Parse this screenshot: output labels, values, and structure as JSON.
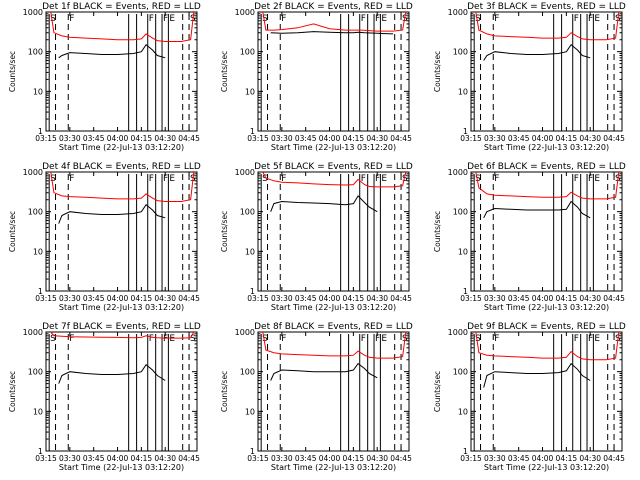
{
  "xticks": [
    "03:15",
    "03:30",
    "03:45",
    "04:00",
    "04:15",
    "04:30",
    "04:45"
  ],
  "yticks": [
    "1",
    "10",
    "100",
    "1000"
  ],
  "ylabel": "Counts/sec",
  "xlabel": "Start Time (22-Jul-13 03:12:20)",
  "colors": {
    "black": "#000000",
    "red": "#ff0000"
  },
  "chart_data": [
    {
      "type": "line",
      "title": "Det 1f BLACK = Events, RED = LLD",
      "ylim": [
        1,
        1000
      ],
      "yscale": "log",
      "xlim": [
        "03:15",
        "04:50"
      ],
      "series": [
        {
          "color": "black",
          "x": [
            "03:23",
            "03:25",
            "03:30",
            "03:40",
            "03:50",
            "04:00",
            "04:10",
            "04:15",
            "04:18",
            "04:22",
            "04:25",
            "04:30"
          ],
          "values": [
            70,
            80,
            95,
            90,
            85,
            85,
            90,
            100,
            150,
            110,
            80,
            70
          ]
        },
        {
          "color": "red",
          "x": [
            "03:18",
            "03:20",
            "03:25",
            "03:30",
            "03:40",
            "03:50",
            "04:00",
            "04:10",
            "04:15",
            "04:18",
            "04:22",
            "04:25",
            "04:30",
            "04:40",
            "04:46",
            "04:48"
          ],
          "values": [
            1000,
            300,
            250,
            230,
            220,
            210,
            200,
            200,
            210,
            280,
            220,
            190,
            180,
            180,
            200,
            1000
          ]
        }
      ]
    },
    {
      "type": "line",
      "title": "Det 2f BLACK = Events, RED = LLD",
      "ylim": [
        1,
        1000
      ],
      "yscale": "log",
      "xlim": [
        "03:15",
        "04:50"
      ],
      "series": [
        {
          "color": "black",
          "x": [
            "03:23",
            "03:30",
            "03:40",
            "03:50",
            "04:00",
            "04:10",
            "04:15",
            "04:18",
            "04:22",
            "04:30",
            "04:40"
          ],
          "values": [
            300,
            290,
            300,
            320,
            310,
            300,
            300,
            310,
            300,
            290,
            280
          ]
        },
        {
          "color": "red",
          "x": [
            "03:18",
            "03:20",
            "03:25",
            "03:30",
            "03:40",
            "03:50",
            "04:00",
            "04:10",
            "04:15",
            "04:20",
            "04:30",
            "04:40",
            "04:46",
            "04:48"
          ],
          "values": [
            1000,
            350,
            350,
            360,
            400,
            500,
            380,
            350,
            350,
            350,
            330,
            330,
            350,
            1000
          ]
        }
      ]
    },
    {
      "type": "line",
      "title": "Det 3f BLACK = Events, RED = LLD",
      "ylim": [
        1,
        1000
      ],
      "yscale": "log",
      "xlim": [
        "03:15",
        "04:50"
      ],
      "series": [
        {
          "color": "black",
          "x": [
            "03:23",
            "03:25",
            "03:30",
            "03:40",
            "03:50",
            "04:00",
            "04:10",
            "04:15",
            "04:18",
            "04:22",
            "04:25",
            "04:30"
          ],
          "values": [
            60,
            80,
            100,
            90,
            85,
            85,
            90,
            100,
            150,
            110,
            80,
            70
          ]
        },
        {
          "color": "red",
          "x": [
            "03:18",
            "03:20",
            "03:25",
            "03:30",
            "03:40",
            "03:50",
            "04:00",
            "04:10",
            "04:15",
            "04:18",
            "04:22",
            "04:25",
            "04:30",
            "04:40",
            "04:46",
            "04:48"
          ],
          "values": [
            1000,
            350,
            280,
            250,
            240,
            230,
            220,
            220,
            230,
            300,
            240,
            210,
            200,
            200,
            220,
            1000
          ]
        }
      ]
    },
    {
      "type": "line",
      "title": "Det 4f BLACK = Events, RED = LLD",
      "ylim": [
        1,
        1000
      ],
      "yscale": "log",
      "xlim": [
        "03:15",
        "04:50"
      ],
      "series": [
        {
          "color": "black",
          "x": [
            "03:23",
            "03:25",
            "03:30",
            "03:40",
            "03:50",
            "04:00",
            "04:10",
            "04:15",
            "04:18",
            "04:22",
            "04:25",
            "04:30"
          ],
          "values": [
            50,
            80,
            100,
            90,
            85,
            85,
            90,
            100,
            150,
            110,
            80,
            70
          ]
        },
        {
          "color": "red",
          "x": [
            "03:18",
            "03:20",
            "03:25",
            "03:30",
            "03:40",
            "03:50",
            "04:00",
            "04:10",
            "04:15",
            "04:18",
            "04:22",
            "04:25",
            "04:30",
            "04:40",
            "04:46",
            "04:48"
          ],
          "values": [
            1000,
            300,
            250,
            240,
            230,
            220,
            210,
            210,
            220,
            280,
            220,
            190,
            180,
            180,
            200,
            1000
          ]
        }
      ]
    },
    {
      "type": "line",
      "title": "Det 5f BLACK = Events, RED = LLD",
      "ylim": [
        1,
        1000
      ],
      "yscale": "log",
      "xlim": [
        "03:15",
        "04:50"
      ],
      "series": [
        {
          "color": "black",
          "x": [
            "03:23",
            "03:25",
            "03:30",
            "03:40",
            "03:50",
            "04:00",
            "04:10",
            "04:15",
            "04:18",
            "04:22",
            "04:25",
            "04:30"
          ],
          "values": [
            100,
            160,
            180,
            170,
            165,
            160,
            150,
            160,
            250,
            170,
            130,
            100
          ]
        },
        {
          "color": "red",
          "x": [
            "03:18",
            "03:20",
            "03:25",
            "03:30",
            "03:40",
            "03:50",
            "04:00",
            "04:10",
            "04:15",
            "04:18",
            "04:22",
            "04:25",
            "04:30",
            "04:40",
            "04:46",
            "04:48"
          ],
          "values": [
            1000,
            700,
            600,
            550,
            530,
            500,
            480,
            470,
            480,
            650,
            480,
            430,
            420,
            420,
            450,
            1000
          ]
        }
      ]
    },
    {
      "type": "line",
      "title": "Det 6f BLACK = Events, RED = LLD",
      "ylim": [
        1,
        1000
      ],
      "yscale": "log",
      "xlim": [
        "03:15",
        "04:50"
      ],
      "series": [
        {
          "color": "black",
          "x": [
            "03:23",
            "03:25",
            "03:30",
            "03:40",
            "03:50",
            "04:00",
            "04:10",
            "04:15",
            "04:18",
            "04:22",
            "04:25",
            "04:30"
          ],
          "values": [
            70,
            100,
            120,
            115,
            110,
            110,
            110,
            115,
            180,
            130,
            90,
            70
          ]
        },
        {
          "color": "red",
          "x": [
            "03:18",
            "03:20",
            "03:25",
            "03:30",
            "03:40",
            "03:50",
            "04:00",
            "04:10",
            "04:15",
            "04:18",
            "04:22",
            "04:25",
            "04:30",
            "04:40",
            "04:46",
            "04:48"
          ],
          "values": [
            1000,
            400,
            280,
            260,
            250,
            240,
            230,
            230,
            240,
            310,
            250,
            220,
            210,
            210,
            230,
            1000
          ]
        }
      ]
    },
    {
      "type": "line",
      "title": "Det 7f BLACK = Events, RED = LLD",
      "ylim": [
        1,
        1000
      ],
      "yscale": "log",
      "xlim": [
        "03:15",
        "04:50"
      ],
      "series": [
        {
          "color": "black",
          "x": [
            "03:23",
            "03:25",
            "03:30",
            "03:40",
            "03:50",
            "04:00",
            "04:10",
            "04:15",
            "04:18",
            "04:22",
            "04:25",
            "04:30"
          ],
          "values": [
            50,
            80,
            100,
            90,
            85,
            85,
            90,
            100,
            150,
            110,
            80,
            60
          ]
        },
        {
          "color": "red",
          "x": [
            "03:18",
            "03:20",
            "03:25",
            "03:30",
            "03:40",
            "03:50",
            "04:00",
            "04:10",
            "04:15",
            "04:18",
            "04:22",
            "04:25",
            "04:30",
            "04:40",
            "04:46",
            "04:48"
          ],
          "values": [
            1000,
            800,
            780,
            760,
            750,
            740,
            730,
            720,
            730,
            800,
            740,
            720,
            700,
            700,
            720,
            1000
          ]
        }
      ]
    },
    {
      "type": "line",
      "title": "Det 8f BLACK = Events, RED = LLD",
      "ylim": [
        1,
        1000
      ],
      "yscale": "log",
      "xlim": [
        "03:15",
        "04:50"
      ],
      "series": [
        {
          "color": "black",
          "x": [
            "03:23",
            "03:25",
            "03:30",
            "03:40",
            "03:50",
            "04:00",
            "04:10",
            "04:15",
            "04:18",
            "04:22",
            "04:25",
            "04:30"
          ],
          "values": [
            60,
            90,
            110,
            105,
            100,
            100,
            100,
            110,
            160,
            120,
            90,
            70
          ]
        },
        {
          "color": "red",
          "x": [
            "03:18",
            "03:20",
            "03:25",
            "03:30",
            "03:40",
            "03:50",
            "04:00",
            "04:10",
            "04:15",
            "04:18",
            "04:22",
            "04:25",
            "04:30",
            "04:40",
            "04:46",
            "04:48"
          ],
          "values": [
            1000,
            350,
            300,
            280,
            270,
            260,
            250,
            250,
            260,
            330,
            260,
            230,
            220,
            220,
            240,
            1000
          ]
        }
      ]
    },
    {
      "type": "line",
      "title": "Det 9f BLACK = Events, RED = LLD",
      "ylim": [
        1,
        1000
      ],
      "yscale": "log",
      "xlim": [
        "03:15",
        "04:50"
      ],
      "series": [
        {
          "color": "black",
          "x": [
            "03:23",
            "03:25",
            "03:30",
            "03:40",
            "03:50",
            "04:00",
            "04:10",
            "04:15",
            "04:18",
            "04:22",
            "04:25",
            "04:30"
          ],
          "values": [
            40,
            80,
            100,
            95,
            90,
            90,
            95,
            105,
            160,
            115,
            80,
            60
          ]
        },
        {
          "color": "red",
          "x": [
            "03:18",
            "03:20",
            "03:25",
            "03:30",
            "03:40",
            "03:50",
            "04:00",
            "04:10",
            "04:15",
            "04:18",
            "04:22",
            "04:25",
            "04:30",
            "04:40",
            "04:46",
            "04:48"
          ],
          "values": [
            1000,
            300,
            260,
            250,
            240,
            230,
            220,
            220,
            230,
            320,
            240,
            210,
            200,
            200,
            220,
            1000
          ]
        }
      ]
    }
  ],
  "markers": [
    {
      "time": "03:17",
      "label": "S",
      "style": "solid"
    },
    {
      "time": "03:21",
      "label": "",
      "style": "dashed"
    },
    {
      "time": "03:29",
      "label": "F",
      "style": "dashed"
    },
    {
      "time": "04:07",
      "label": "",
      "style": "solid"
    },
    {
      "time": "04:12",
      "label": "",
      "style": "solid"
    },
    {
      "time": "04:19",
      "label": "F",
      "style": "solid"
    },
    {
      "time": "04:24",
      "label": "",
      "style": "solid"
    },
    {
      "time": "04:28",
      "label": "F",
      "style": "solid"
    },
    {
      "time": "04:32",
      "label": "E",
      "style": "solid"
    },
    {
      "time": "04:41",
      "label": "",
      "style": "dashed"
    },
    {
      "time": "04:45",
      "label": "S",
      "style": "dashed"
    }
  ]
}
